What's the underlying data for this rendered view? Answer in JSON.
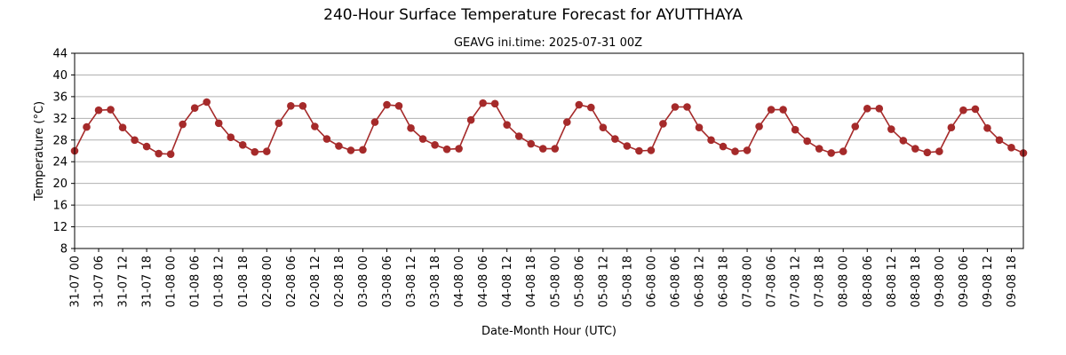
{
  "chart_data": {
    "type": "line",
    "title": "240-Hour Surface Temperature Forecast for AYUTTHAYA",
    "subtitle": "GEAVG ini.time: 2025-07-31 00Z",
    "xlabel": "Date-Month Hour (UTC)",
    "ylabel": "Temperature (°C)",
    "ylim": [
      8,
      44
    ],
    "yticks": [
      8,
      12,
      16,
      20,
      24,
      28,
      32,
      36,
      40,
      44
    ],
    "grid": "horizontal",
    "x_tick_labels": [
      "31-07 00",
      "31-07 06",
      "31-07 12",
      "31-07 18",
      "01-08 00",
      "01-08 06",
      "01-08 12",
      "01-08 18",
      "02-08 00",
      "02-08 06",
      "02-08 12",
      "02-08 18",
      "03-08 00",
      "03-08 06",
      "03-08 12",
      "03-08 18",
      "04-08 00",
      "04-08 06",
      "04-08 12",
      "04-08 18",
      "05-08 00",
      "05-08 06",
      "05-08 12",
      "05-08 18",
      "06-08 00",
      "06-08 06",
      "06-08 12",
      "06-08 18",
      "07-08 00",
      "07-08 06",
      "07-08 12",
      "07-08 18",
      "08-08 00",
      "08-08 06",
      "08-08 12",
      "08-08 18",
      "09-08 00",
      "09-08 06",
      "09-08 12",
      "09-08 18"
    ],
    "x_step_hours": 3,
    "series": [
      {
        "color": "#a52a2a",
        "values": [
          26.0,
          30.4,
          33.5,
          33.6,
          30.3,
          28.0,
          26.8,
          25.5,
          25.4,
          30.9,
          33.9,
          35.0,
          31.1,
          28.5,
          27.1,
          25.8,
          25.9,
          31.1,
          34.3,
          34.3,
          30.5,
          28.2,
          26.9,
          26.1,
          26.2,
          31.3,
          34.5,
          34.3,
          30.2,
          28.2,
          27.1,
          26.3,
          26.4,
          31.7,
          34.8,
          34.7,
          30.8,
          28.7,
          27.3,
          26.4,
          26.4,
          31.3,
          34.5,
          34.0,
          30.3,
          28.2,
          26.9,
          26.0,
          26.1,
          31.0,
          34.1,
          34.1,
          30.3,
          28.0,
          26.8,
          25.9,
          26.1,
          30.5,
          33.6,
          33.6,
          29.9,
          27.8,
          26.4,
          25.6,
          25.9,
          30.5,
          33.8,
          33.8,
          30.0,
          27.9,
          26.4,
          25.7,
          25.9,
          30.3,
          33.5,
          33.7,
          30.2,
          28.0,
          26.6,
          25.6
        ]
      }
    ]
  }
}
